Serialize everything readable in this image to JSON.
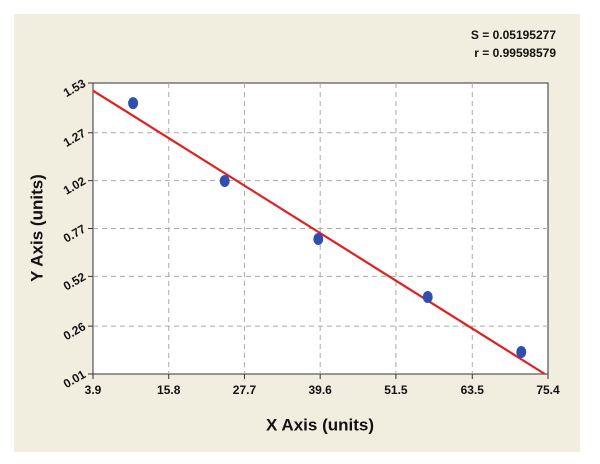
{
  "chart_data": {
    "type": "scatter",
    "x_label": "X Axis (units)",
    "y_label": "Y Axis (units)",
    "annotations": [
      "S = 0.05195277",
      "r = 0.99598579"
    ],
    "xlim": [
      3.9,
      75.4
    ],
    "ylim": [
      0.01,
      1.53
    ],
    "xticks": [
      3.9,
      15.8,
      27.7,
      39.6,
      51.5,
      63.5,
      75.4
    ],
    "yticks": [
      0.01,
      0.26,
      0.52,
      0.77,
      1.02,
      1.27,
      1.53
    ],
    "grid": true,
    "series": [
      {
        "color": "#2f4fb0",
        "x": [
          10.2,
          24.6,
          39.3,
          56.5,
          71.2
        ],
        "values": [
          1.425,
          1.018,
          0.715,
          0.412,
          0.125
        ]
      }
    ],
    "fit_line": {
      "color": "#e02020",
      "x": [
        3.9,
        74.9
      ],
      "values": [
        1.49,
        0.01
      ]
    }
  }
}
